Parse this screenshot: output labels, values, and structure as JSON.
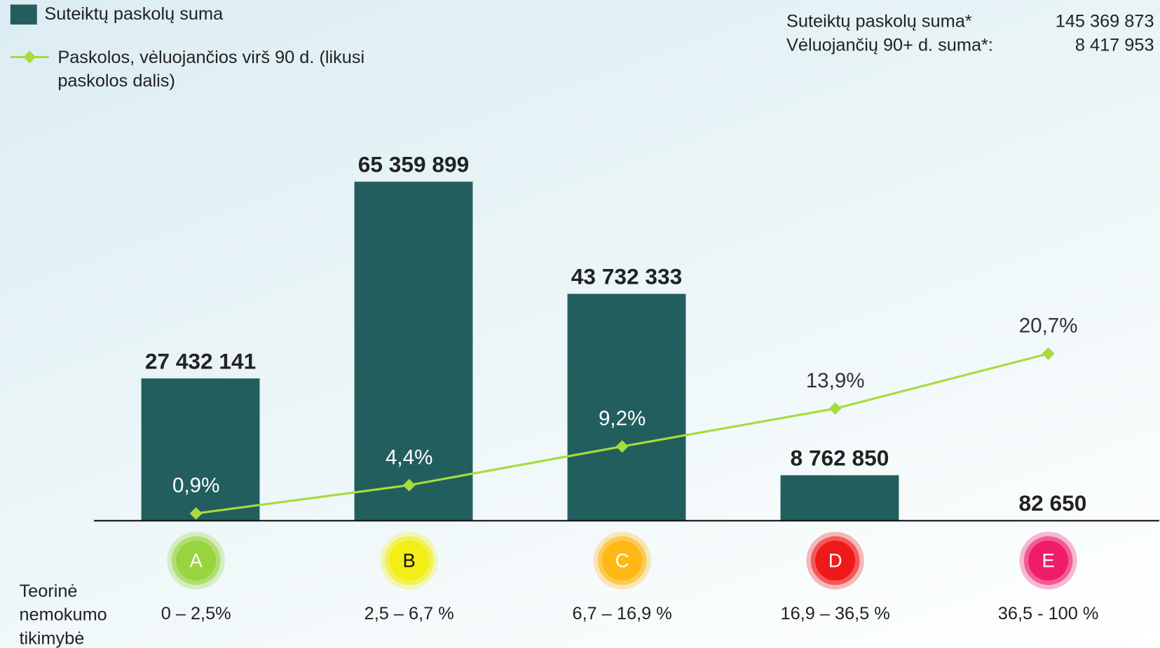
{
  "chart_data": {
    "type": "bar_line",
    "categories": [
      "A",
      "B",
      "C",
      "D",
      "E"
    ],
    "category_ranges": [
      "0 – 2,5%",
      "2,5 – 6,7 %",
      "6,7 – 16,9 %",
      "16,9 – 36,5 %",
      "36,5 - 100 %"
    ],
    "category_colors": [
      "#98d43e",
      "#f2ee16",
      "#ffb814",
      "#ee1a1a",
      "#ee1c6a"
    ],
    "category_text_colors": [
      "#ffffff",
      "#111111",
      "#ffffff",
      "#ffffff",
      "#ffffff"
    ],
    "range_axis_label": "Teorinė nemokumo tikimybė",
    "series": [
      {
        "name": "Suteiktų paskolų suma",
        "type": "bar",
        "color": "#235e5e",
        "values": [
          27432141,
          65359899,
          43732333,
          8762850,
          82650
        ],
        "value_labels": [
          "27 432 141",
          "65 359 899",
          "43 732 333",
          "8 762 850",
          "82 650"
        ]
      },
      {
        "name": "Paskolos, vėluojančios virš 90 d. (likusi paskolos dalis)",
        "type": "line",
        "axis": "y2",
        "color": "#a6dc3c",
        "values": [
          0.9,
          4.4,
          9.2,
          13.9,
          20.7
        ],
        "value_labels": [
          "0,9%",
          "4,4%",
          "9,2%",
          "13,9%",
          "20,7%"
        ]
      }
    ],
    "ylim": [
      0,
      70000000
    ],
    "y2lim": [
      0,
      45
    ],
    "summary": [
      {
        "label": "Suteiktų paskolų suma*",
        "value": "145 369 873"
      },
      {
        "label": "Vėluojančių 90+ d. suma*:",
        "value": "8 417 953"
      }
    ]
  }
}
